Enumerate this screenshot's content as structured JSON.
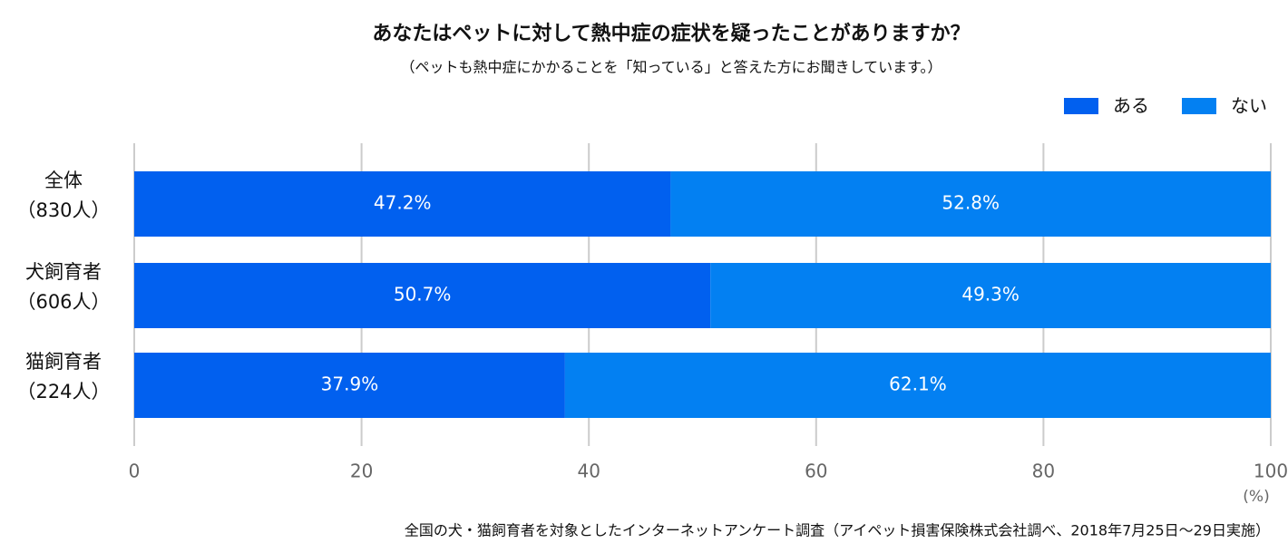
{
  "chart_data": {
    "type": "stacked-barh",
    "title": "あなたはペットに対して熱中症の症状を疑ったことがありますか？",
    "subtitle": "（ペットも熱中症にかかることを「知っている」と答えた方にお聞きしています。）",
    "categories": [
      "全体",
      "犬飼育者",
      "猫飼育者"
    ],
    "category_counts": [
      "（830人）",
      "（606人）",
      "（224人）"
    ],
    "series": [
      {
        "name": "ある",
        "color": "#0160ef",
        "values": [
          47.2,
          50.7,
          37.9
        ],
        "value_labels": [
          "47.2%",
          "50.7%",
          "37.9%"
        ]
      },
      {
        "name": "ない",
        "color": "#0380f2",
        "values": [
          52.8,
          49.3,
          62.1
        ],
        "value_labels": [
          "52.8%",
          "49.3%",
          "62.1%"
        ]
      }
    ],
    "xlim": [
      0,
      100
    ],
    "xticks": [
      0,
      20,
      40,
      60,
      80,
      100
    ],
    "x_unit": "(%)",
    "grid": true,
    "legend": "top-right",
    "source": "全国の犬・猫飼育者を対象としたインターネットアンケート調査（アイペット損害保険株式会社調べ、2018年7月25日～29日実施）"
  }
}
